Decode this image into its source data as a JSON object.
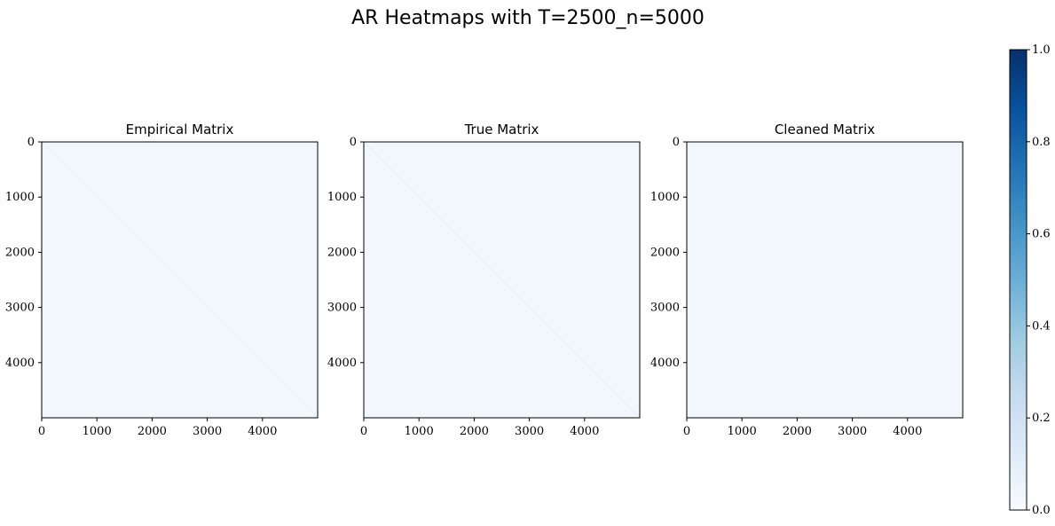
{
  "figure": {
    "title": "AR Heatmaps with T=2500_n=5000"
  },
  "chart_data": [
    {
      "type": "heatmap",
      "title": "Empirical Matrix",
      "matrix_size": 5000,
      "xlim": [
        0,
        5000
      ],
      "ylim": [
        5000,
        0
      ],
      "x_ticks": [
        "0",
        "1000",
        "2000",
        "3000",
        "4000"
      ],
      "y_ticks": [
        "0",
        "1000",
        "2000",
        "3000",
        "4000"
      ],
      "background_value": 0.03,
      "diagonal_value": 0.08,
      "description_visible": "near-uniform pale field with faint main diagonal"
    },
    {
      "type": "heatmap",
      "title": "True Matrix",
      "matrix_size": 5000,
      "xlim": [
        0,
        5000
      ],
      "ylim": [
        5000,
        0
      ],
      "x_ticks": [
        "0",
        "1000",
        "2000",
        "3000",
        "4000"
      ],
      "y_ticks": [
        "0",
        "1000",
        "2000",
        "3000",
        "4000"
      ],
      "background_value": 0.03,
      "diagonal_value": 0.1,
      "description_visible": "near-uniform pale field with faint main diagonal"
    },
    {
      "type": "heatmap",
      "title": "Cleaned Matrix",
      "matrix_size": 5000,
      "xlim": [
        0,
        5000
      ],
      "ylim": [
        5000,
        0
      ],
      "x_ticks": [
        "0",
        "1000",
        "2000",
        "3000",
        "4000"
      ],
      "y_ticks": [
        "0",
        "1000",
        "2000",
        "3000",
        "4000"
      ],
      "background_value": 0.03,
      "diagonal_value": 0.04,
      "description_visible": "near-uniform pale field, diagonal barely visible"
    }
  ],
  "colorbar": {
    "colormap": "Blues",
    "range": [
      0.0,
      1.0
    ],
    "ticks": [
      "0.0",
      "0.2",
      "0.4",
      "0.6",
      "0.8",
      "1.0"
    ],
    "tick_values": [
      0.0,
      0.2,
      0.4,
      0.6,
      0.8,
      1.0
    ],
    "colors": [
      "#f7fbff",
      "#deebf7",
      "#c6dbef",
      "#9ecae1",
      "#6baed6",
      "#4292c6",
      "#2171b5",
      "#08519c",
      "#08306b"
    ]
  }
}
